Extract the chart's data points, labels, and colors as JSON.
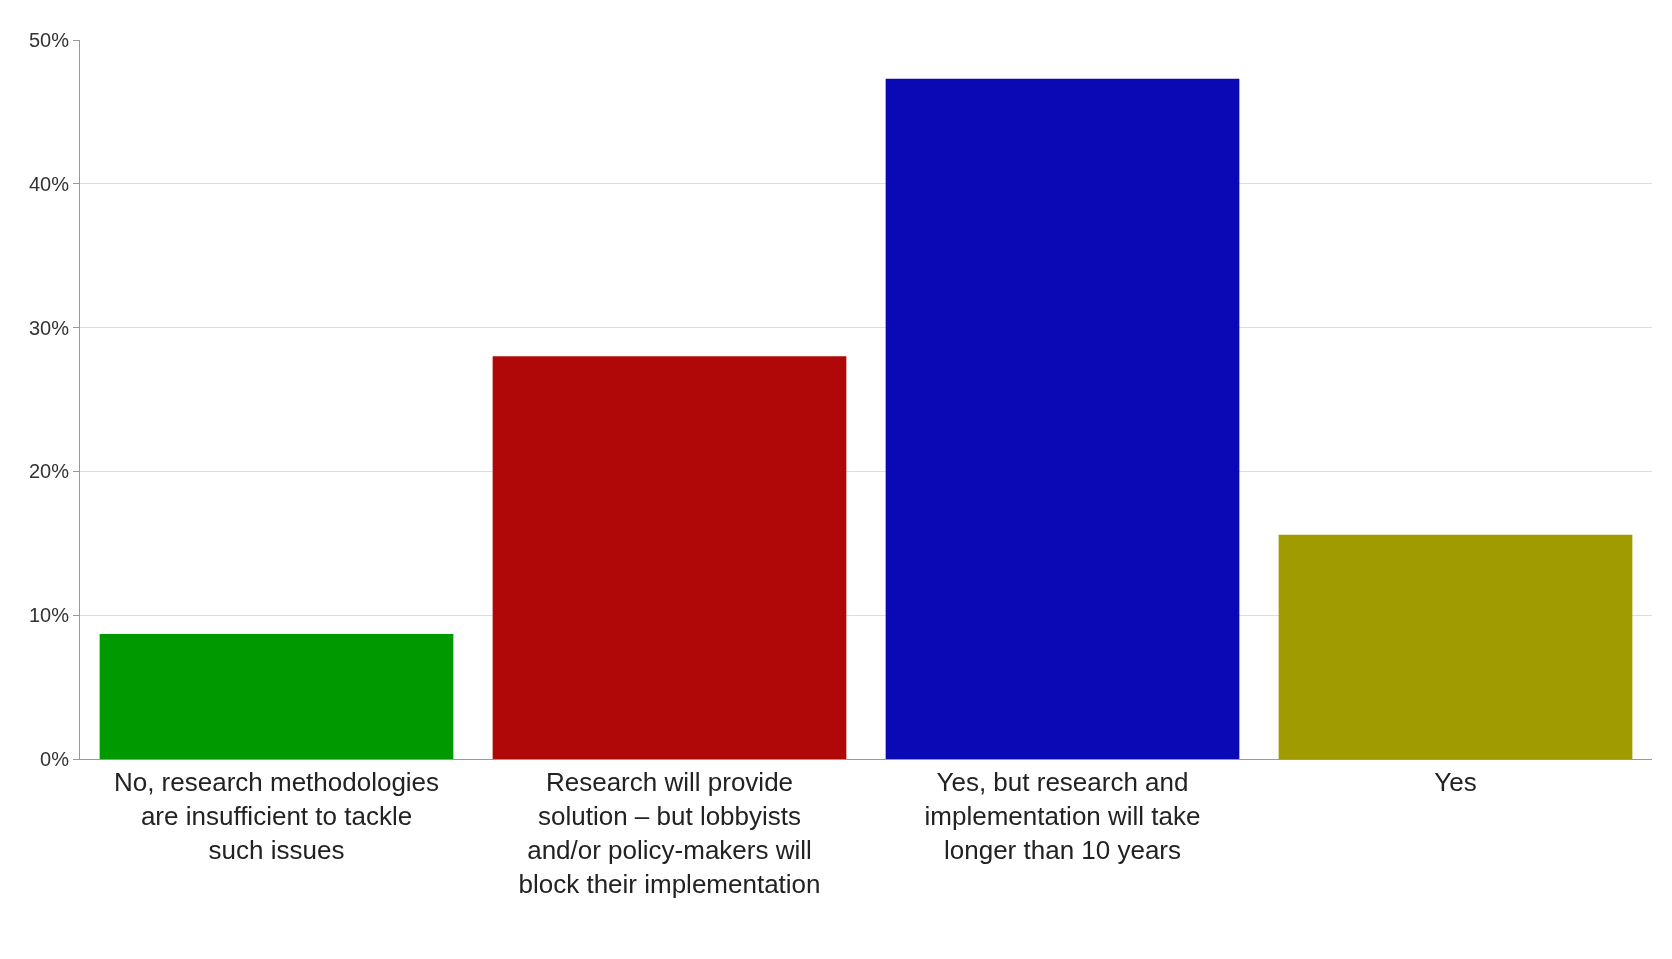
{
  "chart_data": {
    "type": "bar",
    "categories": [
      "No, research methodologies are insufficient to tackle such issues",
      "Research will provide solution – but lobbyists and/or policy-makers will block their implementation",
      "Yes, but research and implementation will take longer than 10 years",
      "Yes"
    ],
    "values": [
      8.7,
      28,
      47.3,
      15.6
    ],
    "colors": [
      "#009900",
      "#b00808",
      "#0a0ab4",
      "#a09c00"
    ],
    "ylim": [
      0,
      50
    ],
    "yticks": [
      {
        "value": 0,
        "label": "0%"
      },
      {
        "value": 10,
        "label": "10%"
      },
      {
        "value": 20,
        "label": "20%"
      },
      {
        "value": 30,
        "label": "30%"
      },
      {
        "value": 40,
        "label": "40%"
      },
      {
        "value": 50,
        "label": "50%"
      }
    ],
    "grid": "y",
    "legend": false
  }
}
